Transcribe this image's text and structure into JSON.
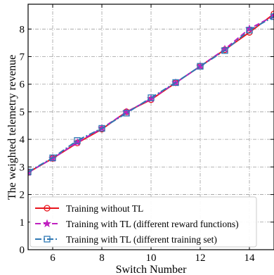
{
  "chart_data": {
    "type": "line",
    "xlabel": "Switch Number",
    "ylabel": "The weighted telemetry revenue",
    "xlim": [
      5,
      15
    ],
    "ylim": [
      0,
      8.9
    ],
    "xticks": [
      6,
      8,
      10,
      12,
      14
    ],
    "yticks": [
      0,
      1,
      2,
      3,
      4,
      5,
      6,
      7,
      8
    ],
    "grid": true,
    "legend_position": "bottom-left",
    "x": [
      5,
      6,
      7,
      8,
      9,
      10,
      11,
      12,
      13,
      14,
      15
    ],
    "series": [
      {
        "name": "Training without TL",
        "color": "#e8141c",
        "line_style": "solid",
        "marker": "circle",
        "values": [
          2.8,
          3.31,
          3.87,
          4.37,
          5.0,
          5.44,
          6.05,
          6.65,
          7.25,
          7.88,
          8.55
        ]
      },
      {
        "name": "Training with TL (different reward functions)",
        "color": "#c020c0",
        "line_style": "dashed",
        "marker": "star",
        "values": [
          2.8,
          3.31,
          3.89,
          4.4,
          4.99,
          5.47,
          6.05,
          6.65,
          7.27,
          8.01,
          8.48
        ]
      },
      {
        "name": "Training with TL (different training set)",
        "color": "#2f78b4",
        "line_style": "dashdot",
        "marker": "square",
        "values": [
          2.82,
          3.33,
          3.96,
          4.4,
          4.95,
          5.51,
          6.06,
          6.65,
          7.22,
          7.96,
          8.45
        ]
      }
    ]
  }
}
